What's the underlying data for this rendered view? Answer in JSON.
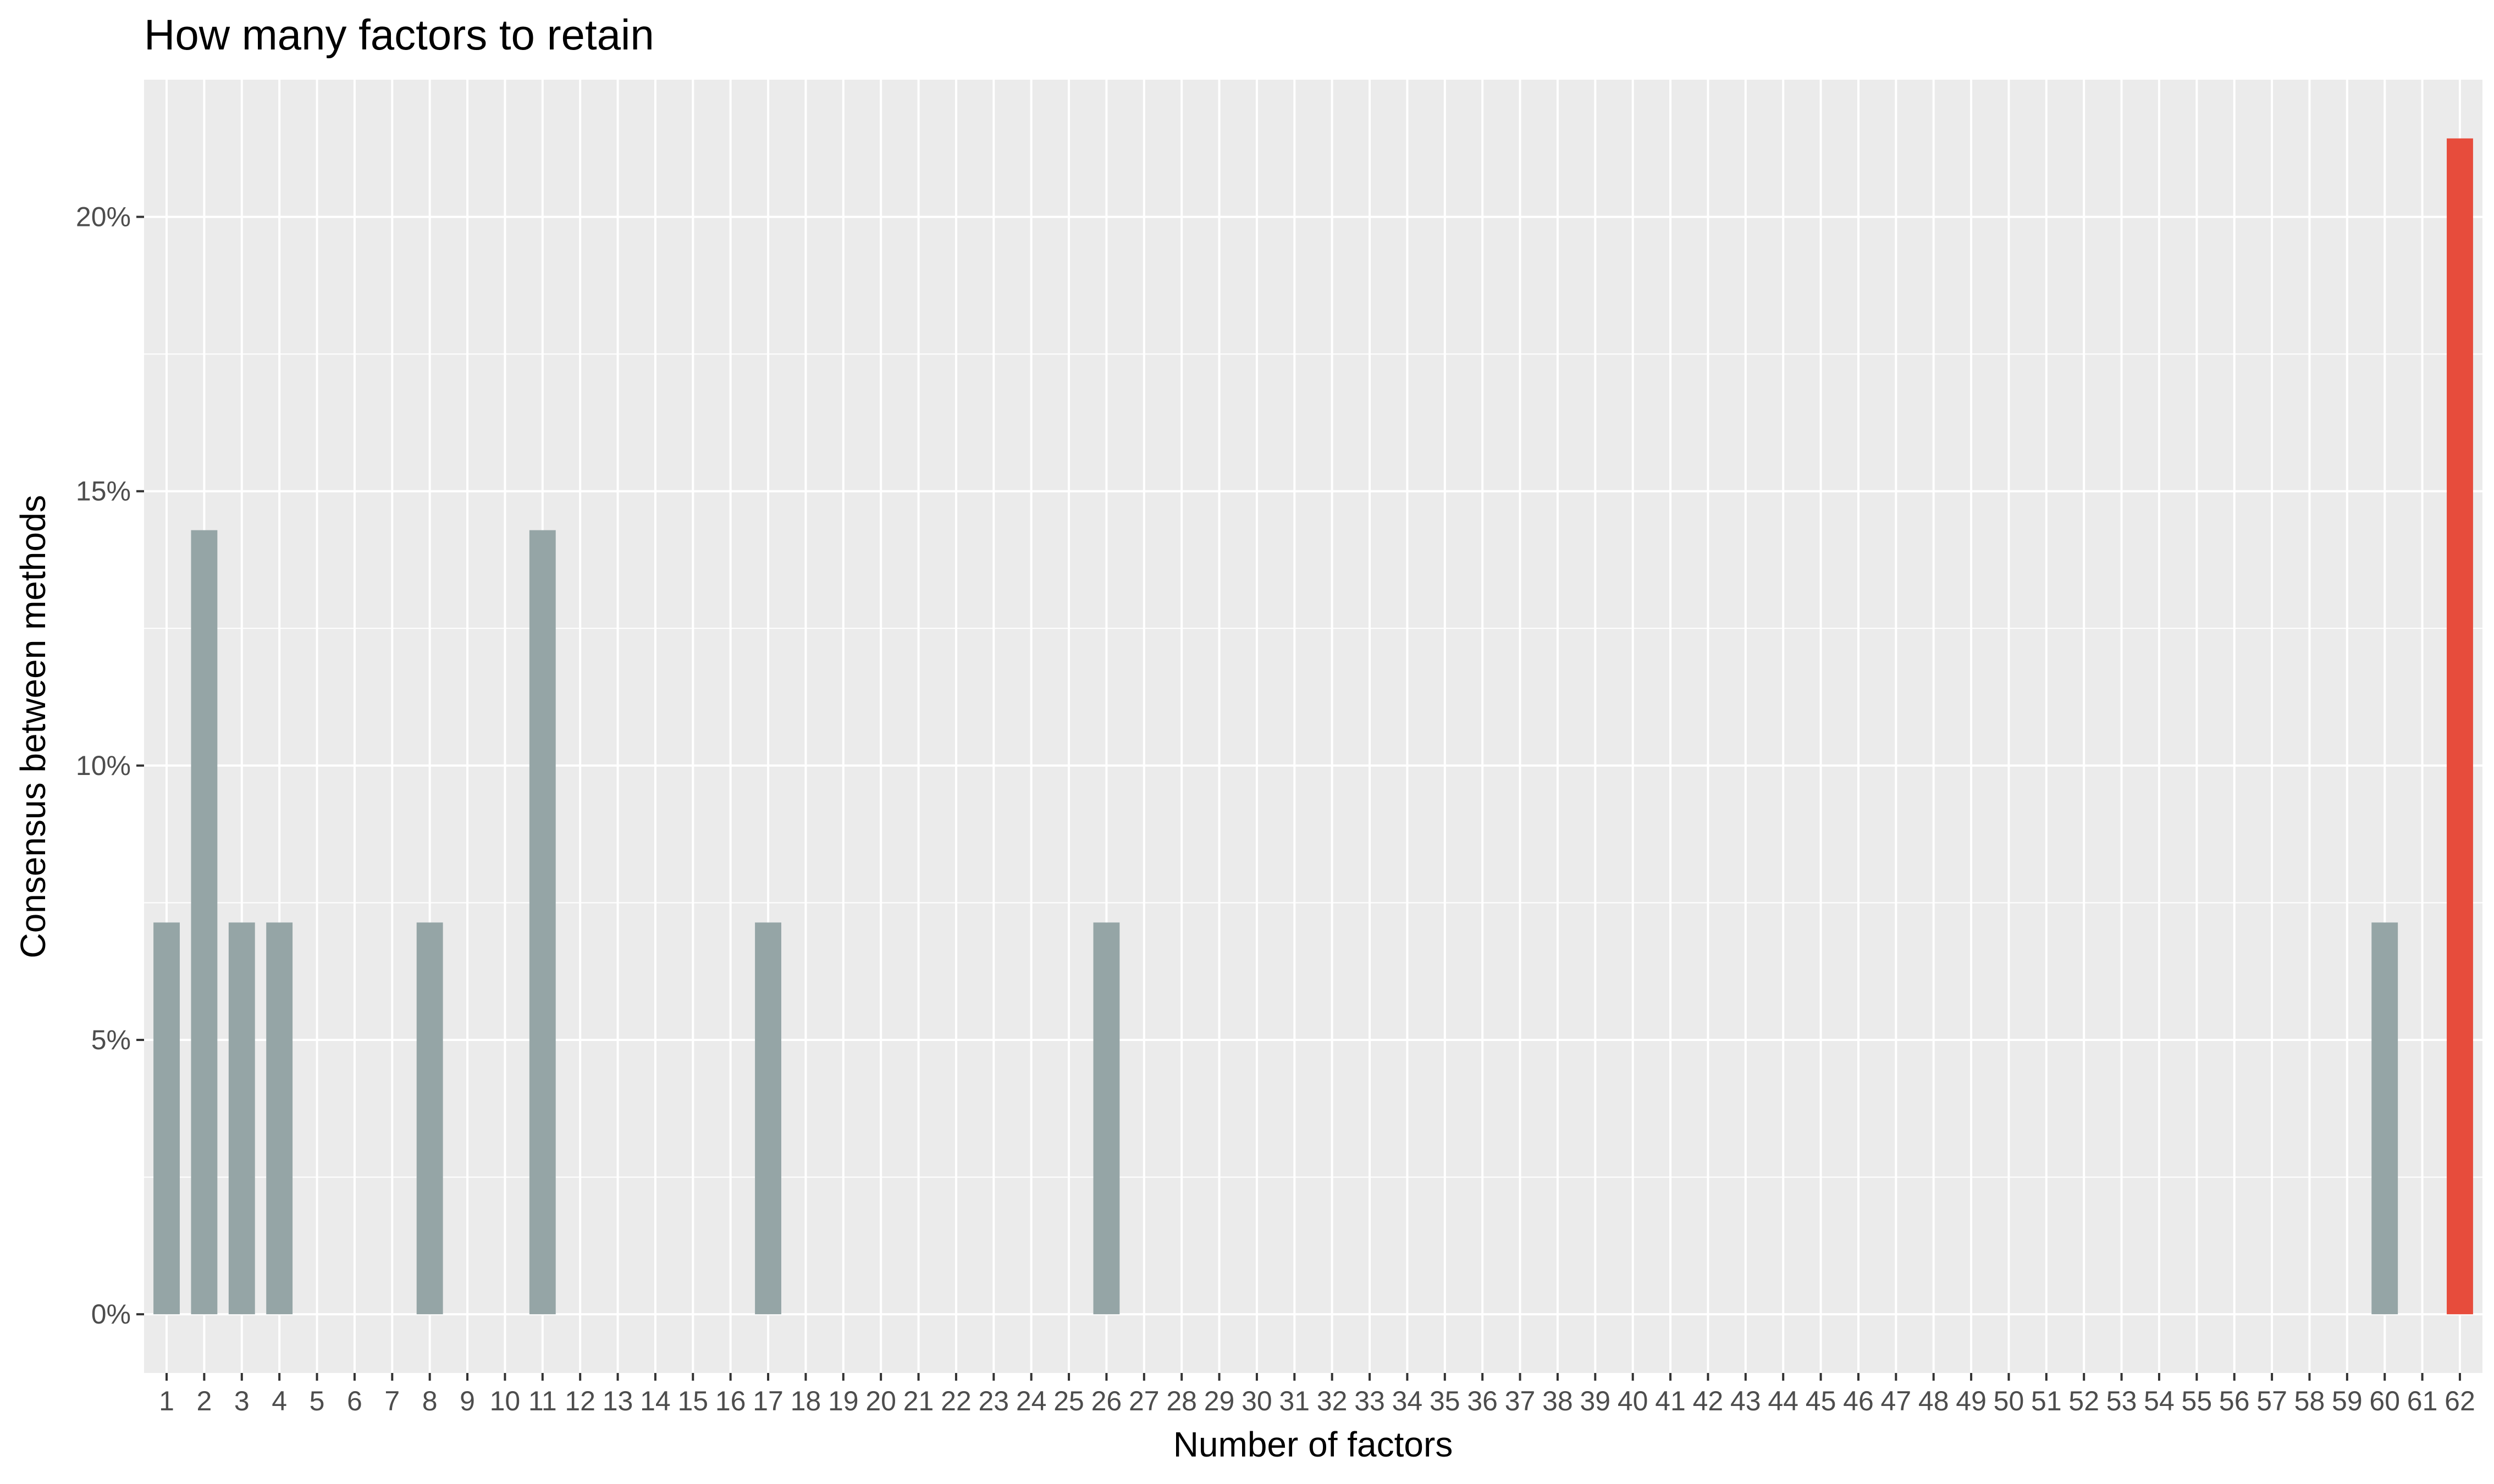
{
  "chart_data": {
    "type": "bar",
    "title": "How many factors to retain",
    "xlabel": "Number of factors",
    "ylabel": "Consensus between methods",
    "x_ticks": [
      "1",
      "2",
      "3",
      "4",
      "5",
      "6",
      "7",
      "8",
      "9",
      "10",
      "11",
      "12",
      "13",
      "14",
      "15",
      "16",
      "17",
      "18",
      "19",
      "20",
      "21",
      "22",
      "23",
      "24",
      "25",
      "26",
      "27",
      "28",
      "29",
      "30",
      "31",
      "32",
      "33",
      "34",
      "35",
      "36",
      "37",
      "38",
      "39",
      "40",
      "41",
      "42",
      "43",
      "44",
      "45",
      "46",
      "47",
      "48",
      "49",
      "50",
      "51",
      "52",
      "53",
      "54",
      "55",
      "56",
      "57",
      "58",
      "59",
      "60",
      "61",
      "62"
    ],
    "x": [
      1,
      2,
      3,
      4,
      8,
      11,
      17,
      26,
      60,
      62
    ],
    "values": [
      0.0714,
      0.1429,
      0.0714,
      0.0714,
      0.0714,
      0.1429,
      0.0714,
      0.0714,
      0.0714,
      0.2143
    ],
    "highlight_x": 62,
    "colors": {
      "bar": "#95a5a6",
      "highlight": "#e74c3c",
      "panel": "#ebebeb",
      "grid": "#ffffff"
    },
    "y_ticks": [
      0,
      0.05,
      0.1,
      0.15,
      0.2
    ],
    "y_tick_labels": [
      "0%",
      "5%",
      "10%",
      "15%",
      "20%"
    ],
    "ylim": [
      -0.0107,
      0.225
    ],
    "xlim": [
      0.4,
      62.6
    ],
    "grid": true,
    "legend": "none"
  }
}
